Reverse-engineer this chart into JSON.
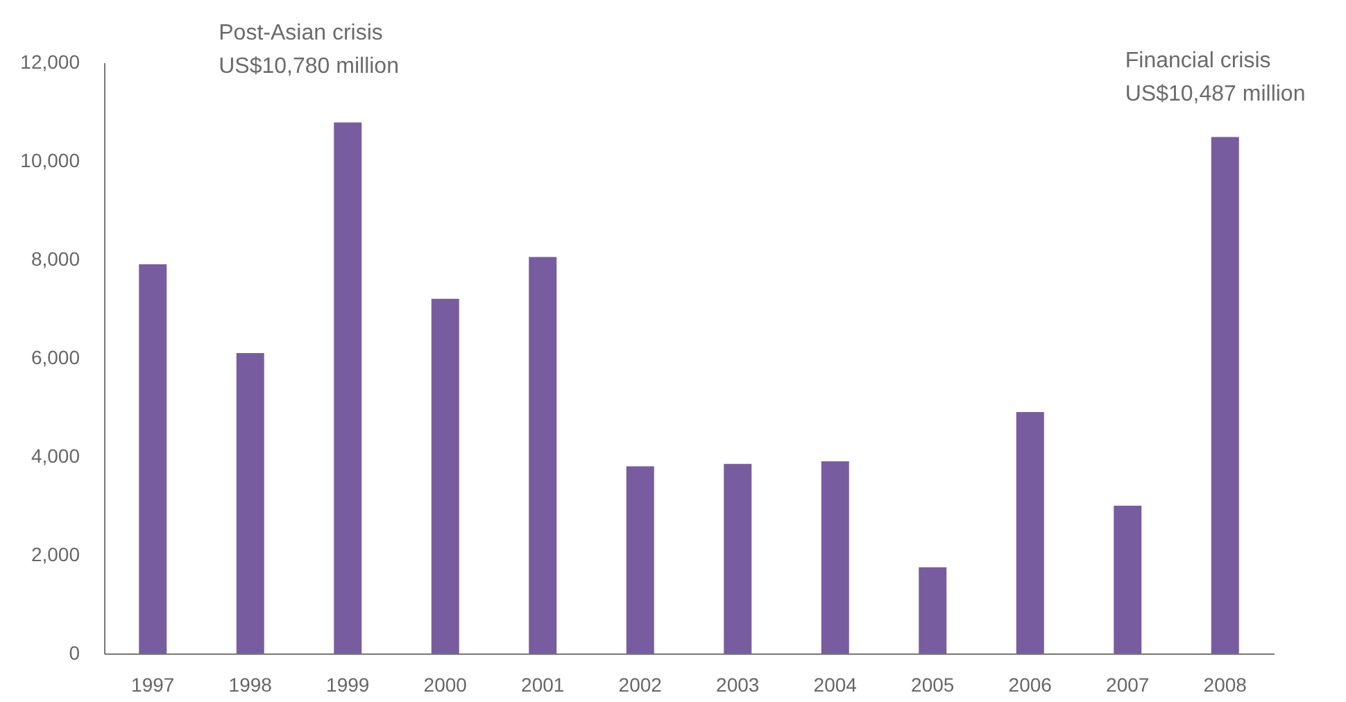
{
  "chart_data": {
    "type": "bar",
    "categories": [
      "1997",
      "1998",
      "1999",
      "2000",
      "2001",
      "2002",
      "2003",
      "2004",
      "2005",
      "2006",
      "2007",
      "2008"
    ],
    "values": [
      7900,
      6100,
      10780,
      7200,
      8050,
      3800,
      3850,
      3900,
      1750,
      4900,
      3000,
      10487
    ],
    "color": "#775d9f",
    "ylim": [
      0,
      12000
    ],
    "yticks": [
      0,
      {
        "value": 2000,
        "label": "2,000"
      },
      {
        "value": 4000,
        "label": "4,000"
      },
      {
        "value": 6000,
        "label": "6,000"
      },
      {
        "value": 8000,
        "label": "8,000"
      },
      {
        "value": 10000,
        "label": "10,000"
      },
      {
        "value": 12000,
        "label": "12,000"
      }
    ],
    "grid": false,
    "annotations": [
      {
        "text": "Post-Asian crisis\nUS$10,780 million",
        "x": "1999",
        "y": 10780
      },
      {
        "text": "Financial crisis\nUS$10,487 million",
        "x": "2008",
        "y": 10487
      }
    ]
  }
}
